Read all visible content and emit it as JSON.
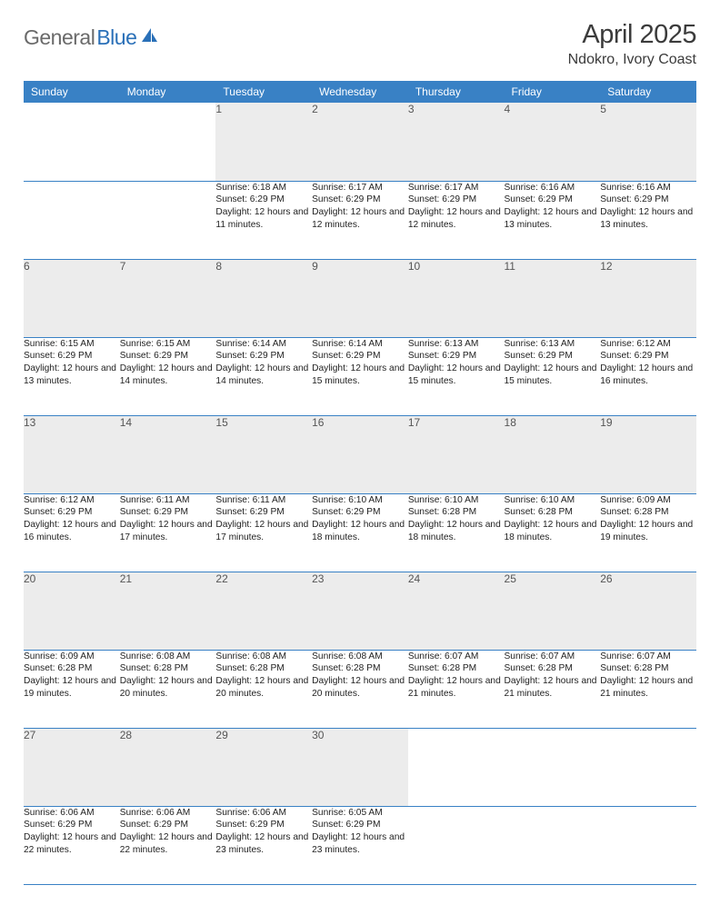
{
  "brand": {
    "part1": "General",
    "part2": "Blue"
  },
  "title": "April 2025",
  "location": "Ndokro, Ivory Coast",
  "colors": {
    "header_bg": "#3981c5",
    "header_text": "#ffffff",
    "daynum_bg": "#ececec",
    "border": "#3981c5",
    "logo_gray": "#6a6a6a",
    "logo_blue": "#2a70b8"
  },
  "weekdays": [
    "Sunday",
    "Monday",
    "Tuesday",
    "Wednesday",
    "Thursday",
    "Friday",
    "Saturday"
  ],
  "weeks": [
    [
      null,
      null,
      {
        "n": "1",
        "sr": "Sunrise: 6:18 AM",
        "ss": "Sunset: 6:29 PM",
        "dl": "Daylight: 12 hours and 11 minutes."
      },
      {
        "n": "2",
        "sr": "Sunrise: 6:17 AM",
        "ss": "Sunset: 6:29 PM",
        "dl": "Daylight: 12 hours and 12 minutes."
      },
      {
        "n": "3",
        "sr": "Sunrise: 6:17 AM",
        "ss": "Sunset: 6:29 PM",
        "dl": "Daylight: 12 hours and 12 minutes."
      },
      {
        "n": "4",
        "sr": "Sunrise: 6:16 AM",
        "ss": "Sunset: 6:29 PM",
        "dl": "Daylight: 12 hours and 13 minutes."
      },
      {
        "n": "5",
        "sr": "Sunrise: 6:16 AM",
        "ss": "Sunset: 6:29 PM",
        "dl": "Daylight: 12 hours and 13 minutes."
      }
    ],
    [
      {
        "n": "6",
        "sr": "Sunrise: 6:15 AM",
        "ss": "Sunset: 6:29 PM",
        "dl": "Daylight: 12 hours and 13 minutes."
      },
      {
        "n": "7",
        "sr": "Sunrise: 6:15 AM",
        "ss": "Sunset: 6:29 PM",
        "dl": "Daylight: 12 hours and 14 minutes."
      },
      {
        "n": "8",
        "sr": "Sunrise: 6:14 AM",
        "ss": "Sunset: 6:29 PM",
        "dl": "Daylight: 12 hours and 14 minutes."
      },
      {
        "n": "9",
        "sr": "Sunrise: 6:14 AM",
        "ss": "Sunset: 6:29 PM",
        "dl": "Daylight: 12 hours and 15 minutes."
      },
      {
        "n": "10",
        "sr": "Sunrise: 6:13 AM",
        "ss": "Sunset: 6:29 PM",
        "dl": "Daylight: 12 hours and 15 minutes."
      },
      {
        "n": "11",
        "sr": "Sunrise: 6:13 AM",
        "ss": "Sunset: 6:29 PM",
        "dl": "Daylight: 12 hours and 15 minutes."
      },
      {
        "n": "12",
        "sr": "Sunrise: 6:12 AM",
        "ss": "Sunset: 6:29 PM",
        "dl": "Daylight: 12 hours and 16 minutes."
      }
    ],
    [
      {
        "n": "13",
        "sr": "Sunrise: 6:12 AM",
        "ss": "Sunset: 6:29 PM",
        "dl": "Daylight: 12 hours and 16 minutes."
      },
      {
        "n": "14",
        "sr": "Sunrise: 6:11 AM",
        "ss": "Sunset: 6:29 PM",
        "dl": "Daylight: 12 hours and 17 minutes."
      },
      {
        "n": "15",
        "sr": "Sunrise: 6:11 AM",
        "ss": "Sunset: 6:29 PM",
        "dl": "Daylight: 12 hours and 17 minutes."
      },
      {
        "n": "16",
        "sr": "Sunrise: 6:10 AM",
        "ss": "Sunset: 6:29 PM",
        "dl": "Daylight: 12 hours and 18 minutes."
      },
      {
        "n": "17",
        "sr": "Sunrise: 6:10 AM",
        "ss": "Sunset: 6:28 PM",
        "dl": "Daylight: 12 hours and 18 minutes."
      },
      {
        "n": "18",
        "sr": "Sunrise: 6:10 AM",
        "ss": "Sunset: 6:28 PM",
        "dl": "Daylight: 12 hours and 18 minutes."
      },
      {
        "n": "19",
        "sr": "Sunrise: 6:09 AM",
        "ss": "Sunset: 6:28 PM",
        "dl": "Daylight: 12 hours and 19 minutes."
      }
    ],
    [
      {
        "n": "20",
        "sr": "Sunrise: 6:09 AM",
        "ss": "Sunset: 6:28 PM",
        "dl": "Daylight: 12 hours and 19 minutes."
      },
      {
        "n": "21",
        "sr": "Sunrise: 6:08 AM",
        "ss": "Sunset: 6:28 PM",
        "dl": "Daylight: 12 hours and 20 minutes."
      },
      {
        "n": "22",
        "sr": "Sunrise: 6:08 AM",
        "ss": "Sunset: 6:28 PM",
        "dl": "Daylight: 12 hours and 20 minutes."
      },
      {
        "n": "23",
        "sr": "Sunrise: 6:08 AM",
        "ss": "Sunset: 6:28 PM",
        "dl": "Daylight: 12 hours and 20 minutes."
      },
      {
        "n": "24",
        "sr": "Sunrise: 6:07 AM",
        "ss": "Sunset: 6:28 PM",
        "dl": "Daylight: 12 hours and 21 minutes."
      },
      {
        "n": "25",
        "sr": "Sunrise: 6:07 AM",
        "ss": "Sunset: 6:28 PM",
        "dl": "Daylight: 12 hours and 21 minutes."
      },
      {
        "n": "26",
        "sr": "Sunrise: 6:07 AM",
        "ss": "Sunset: 6:28 PM",
        "dl": "Daylight: 12 hours and 21 minutes."
      }
    ],
    [
      {
        "n": "27",
        "sr": "Sunrise: 6:06 AM",
        "ss": "Sunset: 6:29 PM",
        "dl": "Daylight: 12 hours and 22 minutes."
      },
      {
        "n": "28",
        "sr": "Sunrise: 6:06 AM",
        "ss": "Sunset: 6:29 PM",
        "dl": "Daylight: 12 hours and 22 minutes."
      },
      {
        "n": "29",
        "sr": "Sunrise: 6:06 AM",
        "ss": "Sunset: 6:29 PM",
        "dl": "Daylight: 12 hours and 23 minutes."
      },
      {
        "n": "30",
        "sr": "Sunrise: 6:05 AM",
        "ss": "Sunset: 6:29 PM",
        "dl": "Daylight: 12 hours and 23 minutes."
      },
      null,
      null,
      null
    ]
  ]
}
